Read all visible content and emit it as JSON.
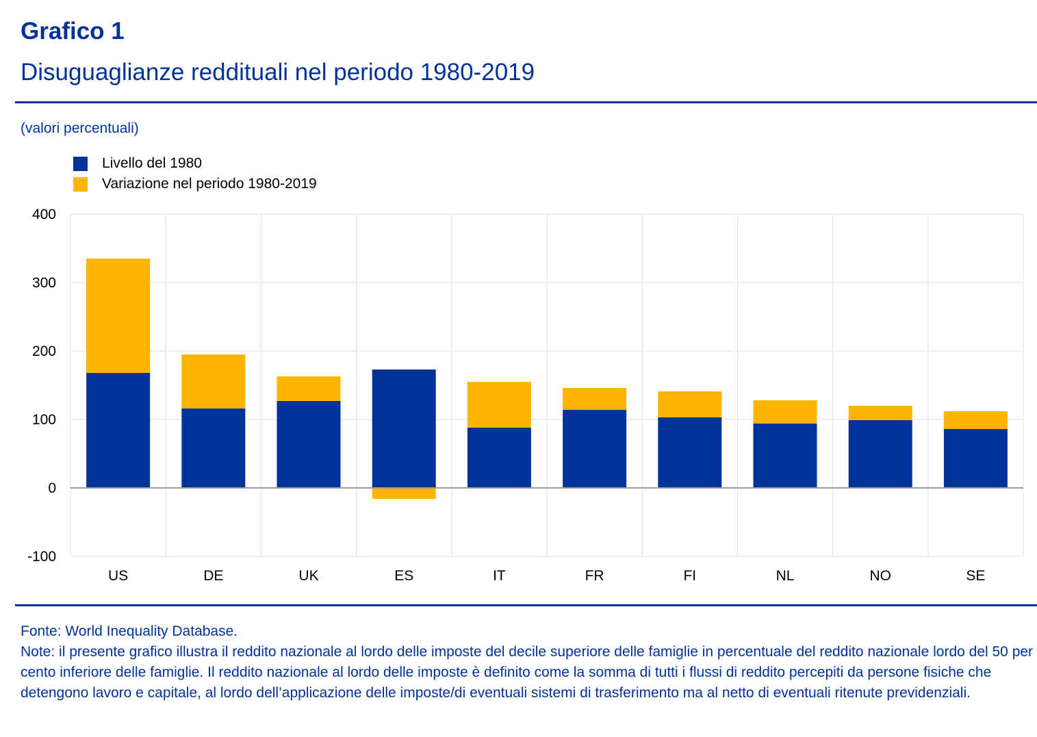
{
  "header": {
    "title": "Grafico 1",
    "subtitle": "Disuguaglianze reddituali nel periodo 1980-2019"
  },
  "unit_label": "(valori percentuali)",
  "legend": [
    {
      "label": "Livello del 1980",
      "color": "#003299"
    },
    {
      "label": "Variazione nel periodo 1980-2019",
      "color": "#FFB400"
    }
  ],
  "chart_data": {
    "type": "bar",
    "stacked": true,
    "categories": [
      "US",
      "DE",
      "UK",
      "ES",
      "IT",
      "FR",
      "FI",
      "NL",
      "NO",
      "SE"
    ],
    "series": [
      {
        "name": "Livello del 1980",
        "color": "#003299",
        "values": [
          168,
          116,
          127,
          173,
          88,
          114,
          103,
          94,
          99,
          86
        ]
      },
      {
        "name": "Variazione nel periodo 1980-2019",
        "color": "#FFB400",
        "values": [
          167,
          79,
          36,
          -16,
          67,
          32,
          38,
          34,
          21,
          26
        ]
      }
    ],
    "yticks": [
      400,
      300,
      200,
      100,
      0,
      -100
    ],
    "ylim": [
      -100,
      400
    ],
    "title": "",
    "xlabel": "",
    "ylabel": ""
  },
  "footer": {
    "source": "Fonte: World Inequality Database.",
    "note": "Note: il presente grafico illustra il reddito nazionale al lordo delle imposte del decile superiore delle famiglie in percentuale del reddito nazionale lordo del 50 per cento inferiore delle famiglie. Il reddito nazionale al lordo delle imposte è definito come la somma di tutti i flussi di reddito percepiti da persone fisiche che detengono lavoro e capitale, al lordo dell’applicazione delle imposte/di eventuali sistemi di trasferimento ma al netto di eventuali ritenute previdenziali."
  }
}
